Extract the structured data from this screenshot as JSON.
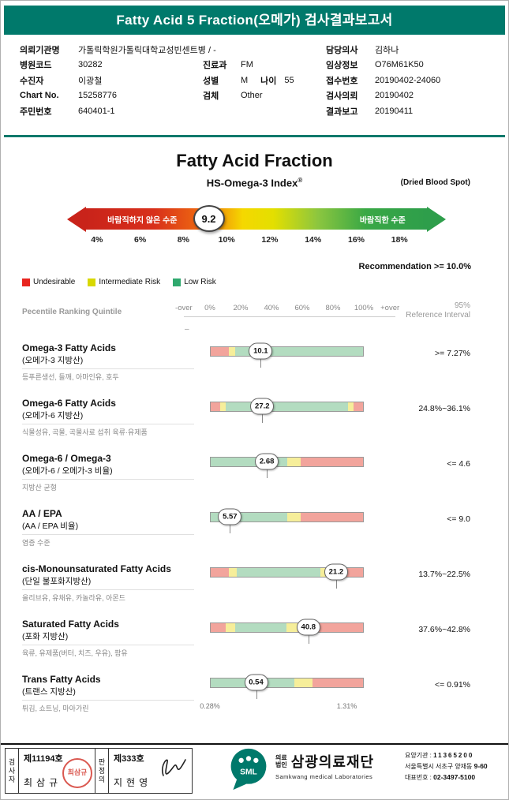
{
  "colors": {
    "teal": "#00796B",
    "seg_red": "#F2A49C",
    "seg_yellow": "#F6EE9A",
    "seg_green": "#B3DCC0",
    "arrow_red": "#C9231A",
    "arrow_green": "#2E9E4B"
  },
  "header": {
    "title": "Fatty Acid 5 Fraction(오메가) 검사결과보고서"
  },
  "info": {
    "left": [
      {
        "label": "의뢰기관명",
        "value": "가톨릭학원가톨릭대학교성빈센트병 / -"
      },
      {
        "label": "병원코드",
        "value": "30282"
      },
      {
        "label": "수진자",
        "value": "이광철"
      },
      {
        "label": "Chart No.",
        "value": "15258776"
      },
      {
        "label": "주민번호",
        "value": "640401-1"
      }
    ],
    "middle": [
      null,
      {
        "label": "진료과",
        "value": "FM"
      },
      {
        "label": "성별",
        "value": "M",
        "label2": "나이",
        "value2": "55"
      },
      {
        "label": "검체",
        "value": "Other"
      }
    ],
    "right": [
      {
        "label": "담당의사",
        "value": "김하나"
      },
      {
        "label": "임상정보",
        "value": "O76M61K50"
      },
      {
        "label": "접수번호",
        "value": "20190402-24060"
      },
      {
        "label": "검사의뢰",
        "value": "20190402"
      },
      {
        "label": "결과보고",
        "value": "20190411"
      }
    ]
  },
  "main": {
    "title": "Fatty Acid Fraction",
    "subtitle": "HS-Omega-3 Index",
    "subtitle_sup": "®",
    "subtitle_right": "(Dried Blood Spot)",
    "arrow": {
      "left_label": "바람직하지 않은 수준",
      "right_label": "바람직한 수준",
      "value": "9.2",
      "value_pos": 0.36,
      "ticks": [
        "4%",
        "6%",
        "8%",
        "10%",
        "12%",
        "14%",
        "16%",
        "18%"
      ]
    },
    "recommendation": "Recommendation  >=  10.0%",
    "legend": [
      {
        "label": "Undesirable",
        "color": "#E8251F"
      },
      {
        "label": "Intermediate Risk",
        "color": "#D8D800"
      },
      {
        "label": "Low Risk",
        "color": "#2FA96E"
      }
    ],
    "quintile_label": "Pecentile Ranking Quintile",
    "scale_labels": [
      "-over",
      "0%",
      "20%",
      "40%",
      "60%",
      "80%",
      "100%",
      "+over"
    ],
    "scale_dash": "–",
    "ref_header_line1": "95%",
    "ref_header_line2": "Reference Interval"
  },
  "rows": [
    {
      "name": "Omega-3 Fatty Acids",
      "korean": "(오메가-3 지방산)",
      "desc": "등푸른생선, 들깨, 아마인유, 호두",
      "value": "10.1",
      "value_pos": 0.33,
      "ref": ">= 7.27%",
      "segments": [
        {
          "c": "red",
          "w": 12
        },
        {
          "c": "yellow",
          "w": 4
        },
        {
          "c": "green",
          "w": 84
        }
      ]
    },
    {
      "name": "Omega-6 Fatty Acids",
      "korean": "(오메가-6 지방산)",
      "desc": "식물성유, 곡물, 곡물사료 섭취 육류·유제품",
      "value": "27.2",
      "value_pos": 0.34,
      "ref": "24.8%~36.1%",
      "segments": [
        {
          "c": "red",
          "w": 6
        },
        {
          "c": "yellow",
          "w": 4
        },
        {
          "c": "green",
          "w": 80
        },
        {
          "c": "yellow",
          "w": 4
        },
        {
          "c": "red",
          "w": 6
        }
      ]
    },
    {
      "name": "Omega-6 / Omega-3",
      "korean": "(오메가-6 / 오메가-3 비율)",
      "desc": "지방산 균형",
      "value": "2.68",
      "value_pos": 0.37,
      "ref": "<= 4.6",
      "segments": [
        {
          "c": "green",
          "w": 50
        },
        {
          "c": "yellow",
          "w": 9
        },
        {
          "c": "red",
          "w": 41
        }
      ]
    },
    {
      "name": "AA / EPA",
      "korean": "(AA / EPA 비율)",
      "desc": "염증 수준",
      "value": "5.57",
      "value_pos": 0.13,
      "ref": "<= 9.0",
      "segments": [
        {
          "c": "green",
          "w": 50
        },
        {
          "c": "yellow",
          "w": 9
        },
        {
          "c": "red",
          "w": 41
        }
      ]
    },
    {
      "name": "cis-Monounsaturated Fatty Acids",
      "korean": "(단일 불포화지방산)",
      "desc": "올리브유, 유채유, 카놀라유, 아몬드",
      "value": "21.2",
      "value_pos": 0.82,
      "ref": "13.7%~22.5%",
      "segments": [
        {
          "c": "red",
          "w": 12
        },
        {
          "c": "yellow",
          "w": 5
        },
        {
          "c": "green",
          "w": 55
        },
        {
          "c": "yellow",
          "w": 8
        },
        {
          "c": "red",
          "w": 20
        }
      ]
    },
    {
      "name": "Saturated Fatty Acids",
      "korean": "(포화 지방산)",
      "desc": "육류, 유제품(버터, 치즈, 우유), 팜유",
      "value": "40.8",
      "value_pos": 0.64,
      "ref": "37.6%~42.8%",
      "segments": [
        {
          "c": "red",
          "w": 10
        },
        {
          "c": "yellow",
          "w": 6
        },
        {
          "c": "green",
          "w": 34
        },
        {
          "c": "yellow",
          "w": 7
        },
        {
          "c": "red",
          "w": 43
        }
      ]
    },
    {
      "name": "Trans Fatty Acids",
      "korean": "(트랜스 지방산)",
      "desc": "튀김, 쇼트닝, 마아가린",
      "value": "0.54",
      "value_pos": 0.3,
      "ref": "<= 0.91%",
      "segments": [
        {
          "c": "green",
          "w": 55
        },
        {
          "c": "yellow",
          "w": 12
        },
        {
          "c": "red",
          "w": 33
        }
      ],
      "sub_labels": [
        {
          "text": "0.28%",
          "pos": 0.0
        },
        {
          "text": "1.31%",
          "pos": 0.89
        }
      ]
    }
  ],
  "chart_data": {
    "type": "bar",
    "title": "Fatty Acid Fraction",
    "subtitle": "HS-Omega-3 Index (Dried Blood Spot)",
    "gauge": {
      "name": "HS-Omega-3 Index",
      "value": 9.2,
      "scale_min": 4,
      "scale_max": 18,
      "unit": "%",
      "recommendation": ">= 10.0%"
    },
    "categories": [
      "Omega-3 Fatty Acids",
      "Omega-6 Fatty Acids",
      "Omega-6 / Omega-3",
      "AA / EPA",
      "cis-Monounsaturated Fatty Acids",
      "Saturated Fatty Acids",
      "Trans Fatty Acids"
    ],
    "values": [
      10.1,
      27.2,
      2.68,
      5.57,
      21.2,
      40.8,
      0.54
    ],
    "reference_intervals": [
      ">= 7.27%",
      "24.8%~36.1%",
      "<= 4.6",
      "<= 9.0",
      "13.7%~22.5%",
      "37.6%~42.8%",
      "<= 0.91%"
    ],
    "xlabel": "Percentile ranking: -over 0% 20% 40% 60% 80% 100% +over",
    "legend_position": "top-left",
    "grid": false
  },
  "footer": {
    "examiner_label": "검사자",
    "examiner_no": "제11194호",
    "examiner_name": "최삼규",
    "judge_label": "판정의",
    "judge_no": "제333호",
    "judge_name": "지현영",
    "org_small_1": "의료",
    "org_small_2": "법인",
    "org_name": "삼광의료재단",
    "org_eng": "Samkwang medical Laboratories",
    "logo_text": "SML",
    "contact": {
      "line1_label": "요양기관 :",
      "line1_value": "11365200",
      "line2_addr": "서울특별시 서초구 양재동",
      "line2_no": "9-60",
      "line3_label": "대표번호 :",
      "line3_value": "02-3497-5100"
    }
  }
}
